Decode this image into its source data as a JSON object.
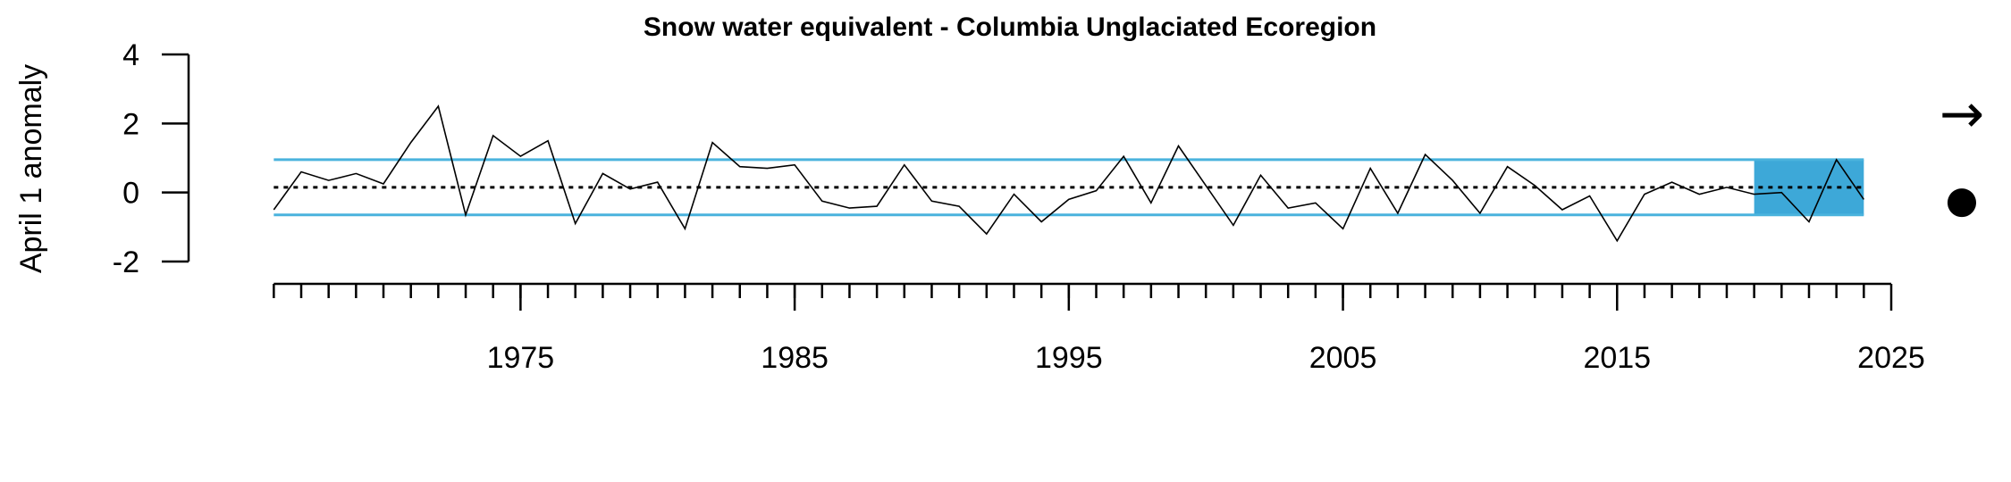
{
  "chart_data": {
    "type": "line",
    "title": "Snow water equivalent - Columbia Unglaciated Ecoregion",
    "ylabel": "April 1 anomaly",
    "xlabel": "",
    "xlim": [
      1965.5,
      2025
    ],
    "ylim": [
      -2,
      4
    ],
    "x_ticks": [
      1975,
      1985,
      1995,
      2005,
      2015,
      2025
    ],
    "y_ticks": [
      -2,
      0,
      2,
      4
    ],
    "x_minor_ticks_start": 1966,
    "x_minor_ticks_end": 2024,
    "grid": false,
    "series": [
      {
        "x": [
          1966,
          1967,
          1968,
          1969,
          1970,
          1971,
          1972,
          1973,
          1974,
          1975,
          1976,
          1977,
          1978,
          1979,
          1980,
          1981,
          1982,
          1983,
          1984,
          1985,
          1986,
          1987,
          1988,
          1989,
          1990,
          1991,
          1992,
          1993,
          1994,
          1995,
          1996,
          1997,
          1998,
          1999,
          2000,
          2001,
          2002,
          2003,
          2004,
          2005,
          2006,
          2007,
          2008,
          2009,
          2010,
          2011,
          2012,
          2013,
          2014,
          2015,
          2016,
          2017,
          2018,
          2019,
          2020,
          2021,
          2022,
          2023,
          2024
        ],
        "values": [
          -0.5,
          0.6,
          0.35,
          0.55,
          0.25,
          1.45,
          2.5,
          -0.65,
          1.65,
          1.05,
          1.5,
          -0.9,
          0.55,
          0.1,
          0.3,
          -1.05,
          1.45,
          0.75,
          0.7,
          0.8,
          -0.25,
          -0.45,
          -0.4,
          0.8,
          -0.25,
          -0.4,
          -1.2,
          -0.05,
          -0.85,
          -0.2,
          0.05,
          1.05,
          -0.3,
          1.35,
          0.2,
          -0.95,
          0.5,
          -0.45,
          -0.3,
          -1.05,
          0.7,
          -0.6,
          1.1,
          0.35,
          -0.6,
          0.75,
          0.2,
          -0.5,
          -0.1,
          -1.4,
          -0.05,
          0.3,
          -0.05,
          0.15,
          -0.05,
          0.0,
          -0.85,
          0.95,
          -0.2
        ]
      }
    ],
    "reference_lines": {
      "mean": 0.15,
      "upper": 0.95,
      "lower": -0.65
    },
    "highlight": {
      "x_start": 2020,
      "x_end": 2024,
      "y_low": -0.65,
      "y_high": 0.95
    },
    "colors": {
      "reference": "#4AB3DD",
      "highlight": "#3DA8D8",
      "series": "#000000",
      "mean_line": "#000000"
    },
    "trend_symbol": "→",
    "status_symbol": "●"
  }
}
